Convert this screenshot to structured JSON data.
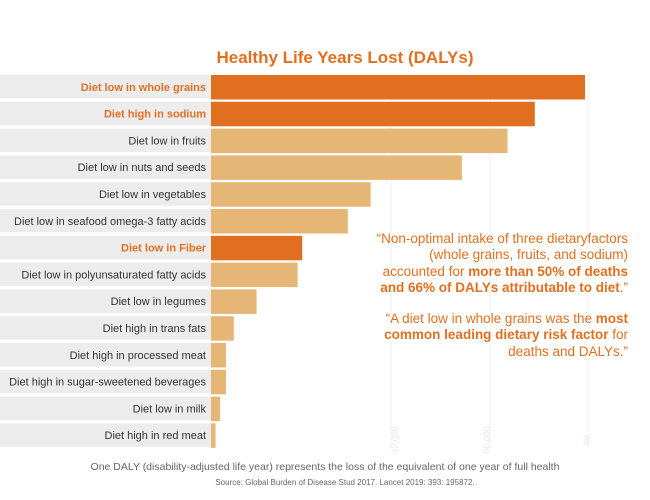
{
  "chart_data": {
    "type": "bar",
    "orientation": "horizontal",
    "title": "Healthy Life Years Lost (DALYs)",
    "categories": [
      "Diet low in whole grains",
      "Diet high in sodium",
      "Diet low in fruits",
      "Diet low in nuts and seeds",
      "Diet low in vegetables",
      "Diet low in seafood omega-3 fatty acids",
      "Diet low in Fiber",
      "Diet low in polyunsaturated fatty acids",
      "Diet low in legumes",
      "Diet high in trans fats",
      "Diet high in processed meat",
      "Diet high in sugar-sweetened beverages",
      "Diet low in milk",
      "Diet high in red meat"
    ],
    "values": [
      82,
      71,
      65,
      55,
      35,
      30,
      20,
      19,
      10,
      5,
      3.3,
      3.3,
      2,
      1
    ],
    "highlighted": [
      "Diet low in whole grains",
      "Diet high in sodium",
      "Diet low in Fiber"
    ],
    "colors": {
      "highlight_bar": "#e07020",
      "normal_bar": "#e6b677",
      "highlight_label": "#e07020",
      "normal_label": "#333333",
      "label_band": "#ececec"
    },
    "xlim": [
      0,
      82
    ],
    "faint_axis_labels": [
      "40,000",
      "60,000",
      "80"
    ],
    "grid": false,
    "legend": "none"
  },
  "quotes": {
    "q1_a": "“Non-optimal intake of three dietaryfactors (whole grains, fruits, and sodium) accounted for ",
    "q1_b": "more than 50% of deaths and 66% of DALYs attributable to diet",
    "q1_c": ".”",
    "q2_a": "“A diet low in whole grains was the ",
    "q2_b": "most common leading dietary risk factor",
    "q2_c": " for deaths and DALYs.”"
  },
  "footer": "One DALY (disability-adjusted life year) represents the loss of the equivalent of one year of full health",
  "source": "Source: Global Burden of Disease Stud 2017. Lancet 2019: 393: 195872."
}
